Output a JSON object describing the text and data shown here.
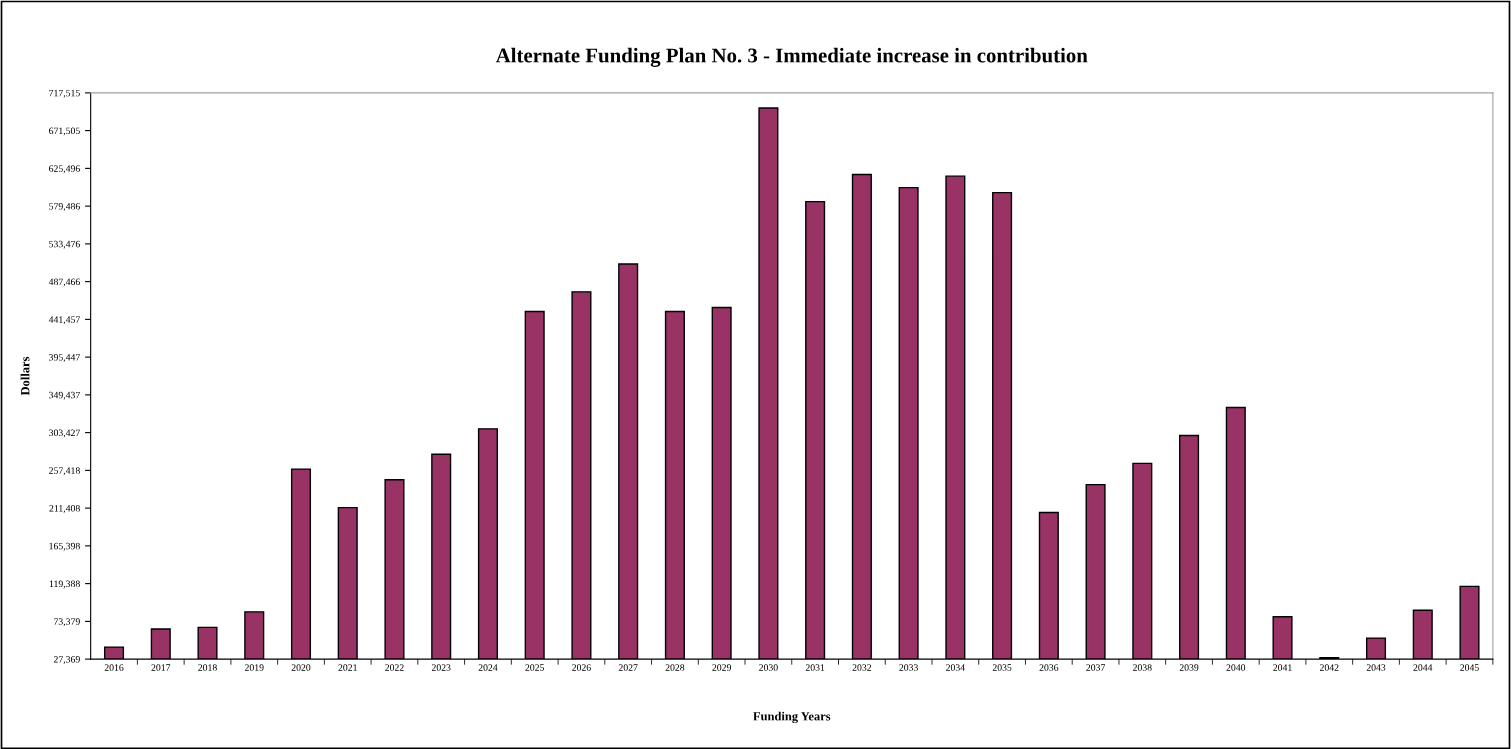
{
  "chart_data": {
    "type": "bar",
    "title": "Alternate Funding Plan No. 3 - Immediate increase in contribution",
    "xlabel": "Funding Years",
    "ylabel": "Dollars",
    "categories": [
      "2016",
      "2017",
      "2018",
      "2019",
      "2020",
      "2021",
      "2022",
      "2023",
      "2024",
      "2025",
      "2026",
      "2027",
      "2028",
      "2029",
      "2030",
      "2031",
      "2032",
      "2033",
      "2034",
      "2035",
      "2036",
      "2037",
      "2038",
      "2039",
      "2040",
      "2041",
      "2042",
      "2043",
      "2044",
      "2045"
    ],
    "values": [
      42000,
      64000,
      66000,
      85000,
      259000,
      212000,
      246000,
      277000,
      308000,
      451000,
      475000,
      509000,
      451000,
      456000,
      699000,
      585000,
      618000,
      602000,
      616000,
      596000,
      206000,
      240000,
      266000,
      300000,
      334000,
      79000,
      29000,
      53000,
      87000,
      116000
    ],
    "color": "#993366",
    "ylim": [
      27369,
      717515
    ],
    "yticks": [
      {
        "value": 27369,
        "label": "27,369"
      },
      {
        "value": 73379,
        "label": "73,379"
      },
      {
        "value": 119388,
        "label": "119,388"
      },
      {
        "value": 165398,
        "label": "165,398"
      },
      {
        "value": 211408,
        "label": "211,408"
      },
      {
        "value": 257418,
        "label": "257,418"
      },
      {
        "value": 303427,
        "label": "303,427"
      },
      {
        "value": 349437,
        "label": "349,437"
      },
      {
        "value": 395447,
        "label": "395,447"
      },
      {
        "value": 441457,
        "label": "441,457"
      },
      {
        "value": 487466,
        "label": "487,466"
      },
      {
        "value": 533476,
        "label": "533,476"
      },
      {
        "value": 579486,
        "label": "579,486"
      },
      {
        "value": 625496,
        "label": "625,496"
      },
      {
        "value": 671505,
        "label": "671,505"
      },
      {
        "value": 717515,
        "label": "717,515"
      }
    ],
    "grid": false,
    "legend": false
  }
}
